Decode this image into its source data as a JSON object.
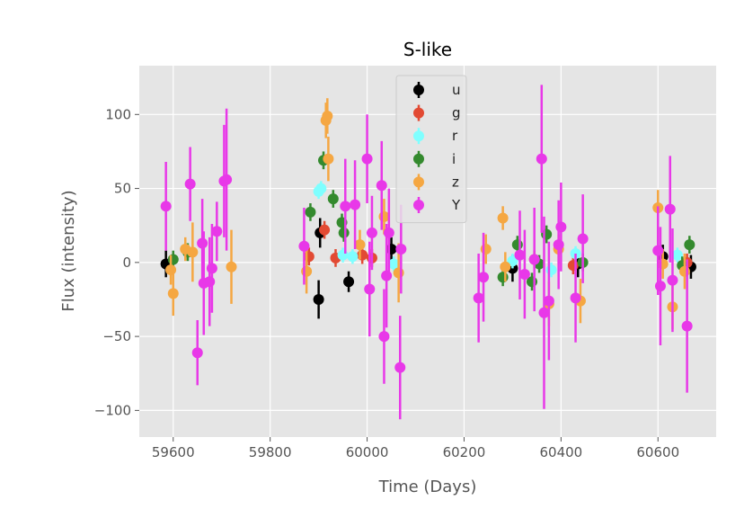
{
  "chart_data": {
    "type": "scatter",
    "title": "S-like",
    "xlabel": "Time (Days)",
    "ylabel": "Flux (intensity)",
    "xlim": [
      59530,
      60720
    ],
    "ylim": [
      -118,
      133
    ],
    "xticks": [
      59600,
      59800,
      60000,
      60200,
      60400,
      60600
    ],
    "yticks": [
      -100,
      -50,
      0,
      50,
      100
    ],
    "xtick_labels": [
      "59600",
      "59800",
      "60000",
      "60200",
      "60400",
      "60600"
    ],
    "ytick_labels": [
      "−100",
      "−50",
      "0",
      "50",
      "100"
    ],
    "grid": true,
    "legend_position": "top-center",
    "error_bars": true,
    "series": [
      {
        "name": "u",
        "color": "#000000",
        "points": [
          {
            "x": 59585,
            "y": -1,
            "err": 9
          },
          {
            "x": 59900,
            "y": -25,
            "err": 13
          },
          {
            "x": 59903,
            "y": 20,
            "err": 10
          },
          {
            "x": 59962,
            "y": -13,
            "err": 7
          },
          {
            "x": 60050,
            "y": 9,
            "err": 8
          },
          {
            "x": 60300,
            "y": -4,
            "err": 9
          },
          {
            "x": 60435,
            "y": -1,
            "err": 9
          },
          {
            "x": 60610,
            "y": 4,
            "err": 8
          },
          {
            "x": 60668,
            "y": -3,
            "err": 8
          }
        ]
      },
      {
        "name": "g",
        "color": "#e24a33",
        "points": [
          {
            "x": 59880,
            "y": 4,
            "err": 6
          },
          {
            "x": 59912,
            "y": 22,
            "err": 6
          },
          {
            "x": 59935,
            "y": 3,
            "err": 6
          },
          {
            "x": 59990,
            "y": 5,
            "err": 6
          },
          {
            "x": 60010,
            "y": 3,
            "err": 6
          },
          {
            "x": 60345,
            "y": 2,
            "err": 6
          },
          {
            "x": 60425,
            "y": -2,
            "err": 6
          },
          {
            "x": 60660,
            "y": 0,
            "err": 6
          }
        ]
      },
      {
        "name": "r",
        "color": "#7fffff",
        "points": [
          {
            "x": 59900,
            "y": 48,
            "err": 5
          },
          {
            "x": 59905,
            "y": 50,
            "err": 5
          },
          {
            "x": 59950,
            "y": 5,
            "err": 5
          },
          {
            "x": 59970,
            "y": 4,
            "err": 5
          },
          {
            "x": 60055,
            "y": -1,
            "err": 5
          },
          {
            "x": 60300,
            "y": 1,
            "err": 5
          },
          {
            "x": 60380,
            "y": -5,
            "err": 5
          },
          {
            "x": 60430,
            "y": 6,
            "err": 5
          },
          {
            "x": 60640,
            "y": 5,
            "err": 5
          }
        ]
      },
      {
        "name": "i",
        "color": "#348a2e",
        "points": [
          {
            "x": 59600,
            "y": 2,
            "err": 6
          },
          {
            "x": 59630,
            "y": 7,
            "err": 6
          },
          {
            "x": 59883,
            "y": 34,
            "err": 6
          },
          {
            "x": 59910,
            "y": 69,
            "err": 6
          },
          {
            "x": 59930,
            "y": 43,
            "err": 6
          },
          {
            "x": 59948,
            "y": 27,
            "err": 6
          },
          {
            "x": 59952,
            "y": 20,
            "err": 6
          },
          {
            "x": 60280,
            "y": -10,
            "err": 6
          },
          {
            "x": 60310,
            "y": 12,
            "err": 6
          },
          {
            "x": 60340,
            "y": -13,
            "err": 6
          },
          {
            "x": 60355,
            "y": -1,
            "err": 6
          },
          {
            "x": 60370,
            "y": 19,
            "err": 6
          },
          {
            "x": 60445,
            "y": 0,
            "err": 6
          },
          {
            "x": 60650,
            "y": -2,
            "err": 6
          },
          {
            "x": 60665,
            "y": 12,
            "err": 6
          }
        ]
      },
      {
        "name": "z",
        "color": "#f5a742",
        "points": [
          {
            "x": 59595,
            "y": -5,
            "err": 10
          },
          {
            "x": 59600,
            "y": -21,
            "err": 15
          },
          {
            "x": 59625,
            "y": 9,
            "err": 8
          },
          {
            "x": 59640,
            "y": 7,
            "err": 20
          },
          {
            "x": 59720,
            "y": -3,
            "err": 25
          },
          {
            "x": 59875,
            "y": -6,
            "err": 15
          },
          {
            "x": 59915,
            "y": 96,
            "err": 12
          },
          {
            "x": 59918,
            "y": 99,
            "err": 12
          },
          {
            "x": 59920,
            "y": 70,
            "err": 15
          },
          {
            "x": 59985,
            "y": 12,
            "err": 10
          },
          {
            "x": 60035,
            "y": 31,
            "err": 12
          },
          {
            "x": 60065,
            "y": -7,
            "err": 20
          },
          {
            "x": 60245,
            "y": 9,
            "err": 10
          },
          {
            "x": 60280,
            "y": 30,
            "err": 8
          },
          {
            "x": 60285,
            "y": -3,
            "err": 10
          },
          {
            "x": 60375,
            "y": -28,
            "err": 15
          },
          {
            "x": 60395,
            "y": 9,
            "err": 10
          },
          {
            "x": 60440,
            "y": -26,
            "err": 15
          },
          {
            "x": 60600,
            "y": 37,
            "err": 12
          },
          {
            "x": 60610,
            "y": -1,
            "err": 10
          },
          {
            "x": 60630,
            "y": -30,
            "err": 15
          },
          {
            "x": 60655,
            "y": -6,
            "err": 12
          }
        ]
      },
      {
        "name": "Y",
        "color": "#e838e8",
        "points": [
          {
            "x": 59585,
            "y": 38,
            "err": 30
          },
          {
            "x": 59635,
            "y": 53,
            "err": 25
          },
          {
            "x": 59650,
            "y": -61,
            "err": 22
          },
          {
            "x": 59660,
            "y": 13,
            "err": 30
          },
          {
            "x": 59663,
            "y": -14,
            "err": 35
          },
          {
            "x": 59675,
            "y": -13,
            "err": 30
          },
          {
            "x": 59680,
            "y": -4,
            "err": 30
          },
          {
            "x": 59690,
            "y": 21,
            "err": 20
          },
          {
            "x": 59705,
            "y": 55,
            "err": 38
          },
          {
            "x": 59710,
            "y": 56,
            "err": 48
          },
          {
            "x": 59870,
            "y": 11,
            "err": 26
          },
          {
            "x": 59955,
            "y": 38,
            "err": 32
          },
          {
            "x": 59975,
            "y": 39,
            "err": 30
          },
          {
            "x": 60000,
            "y": 70,
            "err": 30
          },
          {
            "x": 60005,
            "y": -18,
            "err": 32
          },
          {
            "x": 60010,
            "y": 20,
            "err": 25
          },
          {
            "x": 60030,
            "y": 52,
            "err": 30
          },
          {
            "x": 60035,
            "y": -50,
            "err": 32
          },
          {
            "x": 60040,
            "y": -9,
            "err": 35
          },
          {
            "x": 60045,
            "y": 20,
            "err": 30
          },
          {
            "x": 60068,
            "y": -71,
            "err": 35
          },
          {
            "x": 60070,
            "y": 9,
            "err": 30
          },
          {
            "x": 60230,
            "y": -24,
            "err": 30
          },
          {
            "x": 60240,
            "y": -10,
            "err": 30
          },
          {
            "x": 60315,
            "y": 5,
            "err": 30
          },
          {
            "x": 60325,
            "y": -8,
            "err": 30
          },
          {
            "x": 60345,
            "y": 2,
            "err": 35
          },
          {
            "x": 60360,
            "y": 70,
            "err": 50
          },
          {
            "x": 60365,
            "y": -34,
            "err": 65
          },
          {
            "x": 60375,
            "y": -26,
            "err": 40
          },
          {
            "x": 60395,
            "y": 12,
            "err": 30
          },
          {
            "x": 60400,
            "y": 24,
            "err": 30
          },
          {
            "x": 60430,
            "y": -24,
            "err": 30
          },
          {
            "x": 60445,
            "y": 16,
            "err": 30
          },
          {
            "x": 60600,
            "y": 8,
            "err": 30
          },
          {
            "x": 60605,
            "y": -16,
            "err": 40
          },
          {
            "x": 60625,
            "y": 36,
            "err": 36
          },
          {
            "x": 60630,
            "y": -12,
            "err": 35
          },
          {
            "x": 60660,
            "y": -43,
            "err": 45
          }
        ]
      }
    ]
  }
}
